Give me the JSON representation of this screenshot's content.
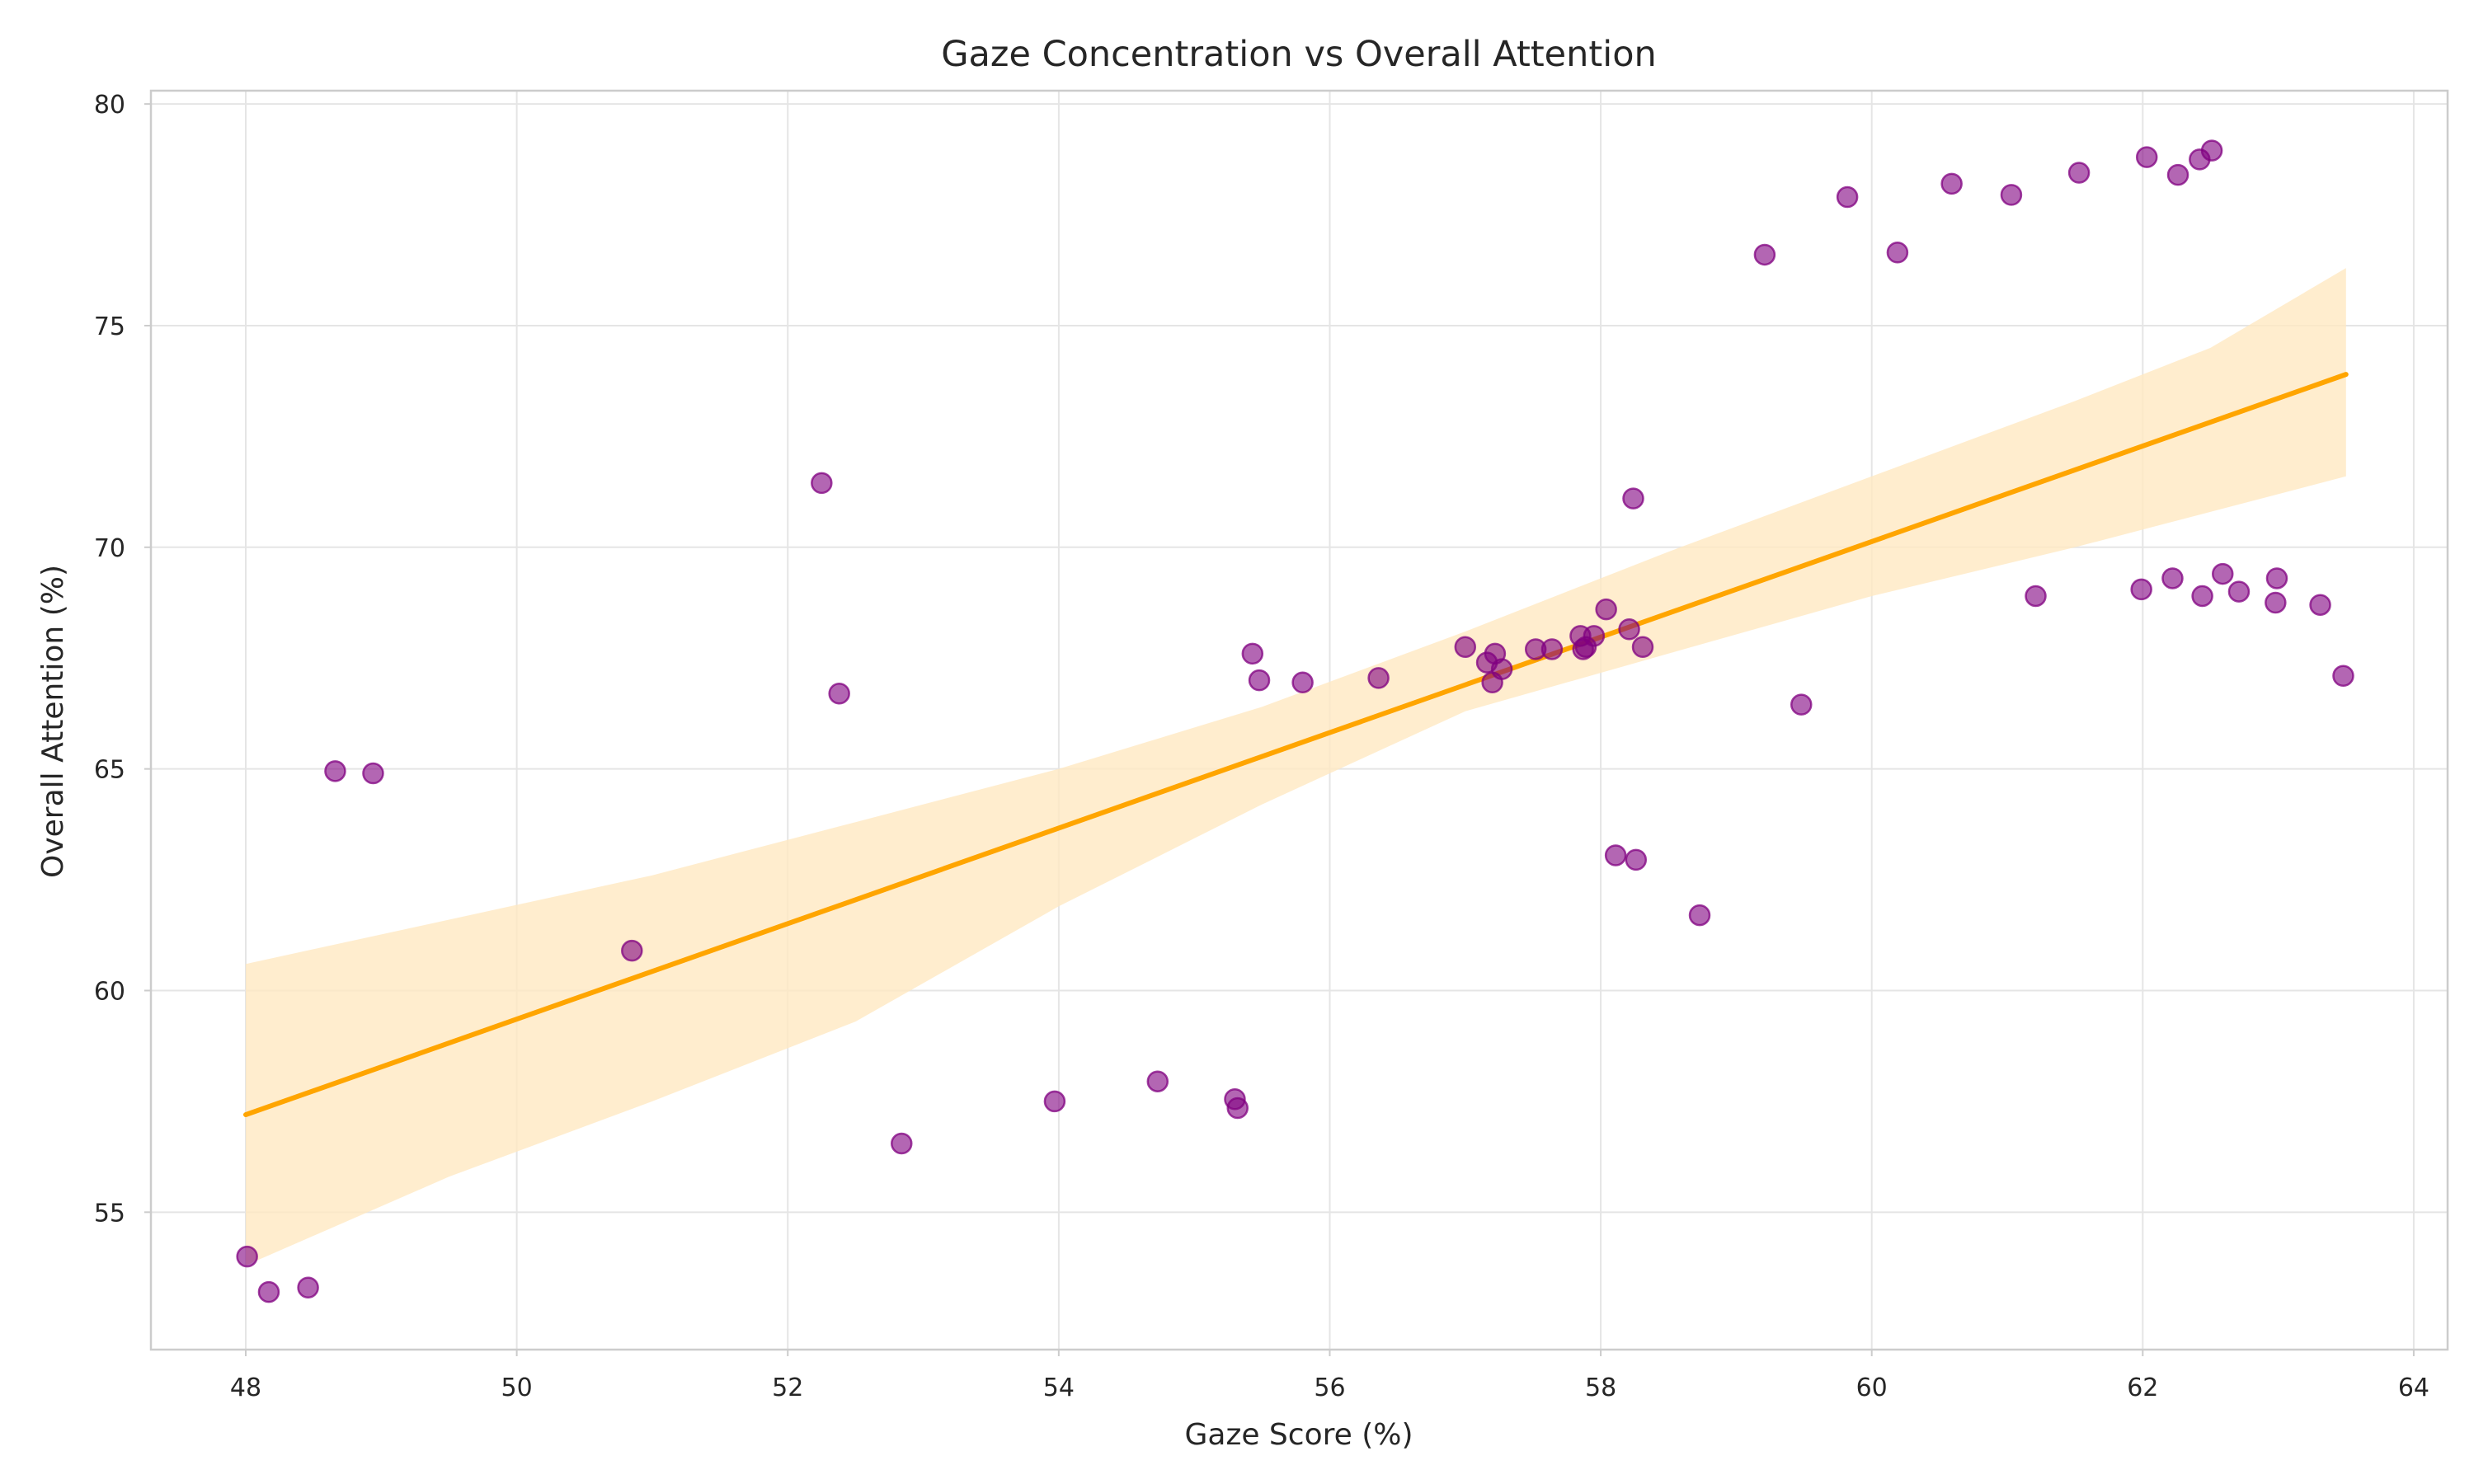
{
  "chart_data": {
    "type": "scatter",
    "title": "Gaze Concentration vs Overall Attention",
    "xlabel": "Gaze Score (%)",
    "ylabel": "Overall Attention (%)",
    "xlim": [
      47.3,
      64.25
    ],
    "ylim": [
      51.9,
      80.3
    ],
    "xticks": [
      48,
      50,
      52,
      54,
      56,
      58,
      60,
      62,
      64
    ],
    "yticks": [
      55,
      60,
      65,
      70,
      75,
      80
    ],
    "grid": true,
    "legend": "none",
    "colors": {
      "points": "#800080",
      "regression_line": "#FFA500",
      "confidence_band": "#FFE8C2",
      "grid": "#E5E5E5",
      "spine": "#CCCCCC"
    },
    "series": [
      {
        "x": [
          48.01,
          48.17,
          48.46,
          48.66,
          48.94,
          50.85,
          52.25,
          52.38,
          52.84,
          53.97,
          54.73,
          55.3,
          55.32,
          55.43,
          55.48,
          55.8,
          56.36,
          57.0,
          57.16,
          57.2,
          57.22,
          57.27,
          57.52,
          57.64,
          57.85,
          57.87,
          57.89,
          57.95,
          58.04,
          58.11,
          58.21,
          58.24,
          58.26,
          58.31,
          58.73,
          59.21,
          59.48,
          59.82,
          60.19,
          60.59,
          61.03,
          61.21,
          61.53,
          61.99,
          62.03,
          62.22,
          62.26,
          62.42,
          62.44,
          62.51,
          62.59,
          62.71,
          62.98,
          62.99,
          63.31,
          63.48
        ],
        "y": [
          54.0,
          53.2,
          53.3,
          64.95,
          64.9,
          60.9,
          71.45,
          66.7,
          56.55,
          57.5,
          57.95,
          57.55,
          57.35,
          67.6,
          67.0,
          66.95,
          67.05,
          67.75,
          67.4,
          66.95,
          67.6,
          67.25,
          67.7,
          67.7,
          68.0,
          67.7,
          67.75,
          68.0,
          68.6,
          63.05,
          68.15,
          71.1,
          62.95,
          67.75,
          61.7,
          76.6,
          66.45,
          77.9,
          76.65,
          78.2,
          77.95,
          68.9,
          78.45,
          69.05,
          78.8,
          69.3,
          78.4,
          78.75,
          68.9,
          78.95,
          69.4,
          69.0,
          68.75,
          69.3,
          68.7,
          67.1
        ]
      }
    ],
    "regression": {
      "x_range": [
        48.0,
        63.5
      ],
      "y_at_start": 57.2,
      "y_at_end": 73.9,
      "ci_lower": [
        [
          48.0,
          53.8
        ],
        [
          49.5,
          55.8
        ],
        [
          51.0,
          57.5
        ],
        [
          52.5,
          59.3
        ],
        [
          54.0,
          61.9
        ],
        [
          55.5,
          64.2
        ],
        [
          57.0,
          66.3
        ],
        [
          58.5,
          67.6
        ],
        [
          60.0,
          68.9
        ],
        [
          61.5,
          70.0
        ],
        [
          63.5,
          71.6
        ]
      ],
      "ci_upper": [
        [
          48.0,
          60.6
        ],
        [
          49.5,
          61.6
        ],
        [
          51.0,
          62.6
        ],
        [
          52.5,
          63.8
        ],
        [
          54.0,
          65.0
        ],
        [
          55.5,
          66.4
        ],
        [
          57.0,
          68.1
        ],
        [
          58.5,
          69.9
        ],
        [
          60.0,
          71.6
        ],
        [
          61.5,
          73.3
        ],
        [
          62.5,
          74.5
        ],
        [
          63.5,
          76.3
        ]
      ]
    }
  }
}
